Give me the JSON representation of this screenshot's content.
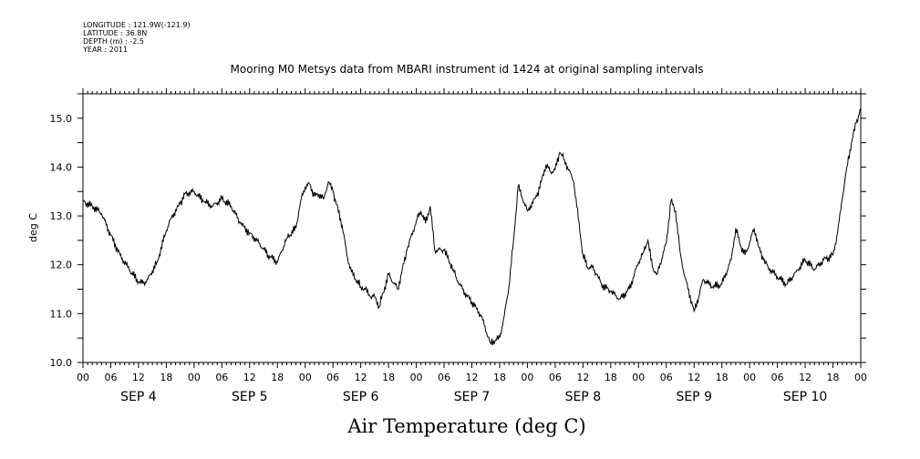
{
  "meta": {
    "longitude": "LONGITUDE : 121.9W(-121.9)",
    "latitude": "LATITUDE : 36.8N",
    "depth": "DEPTH (m) : -2.5",
    "year": "YEAR : 2011"
  },
  "chart_data": {
    "type": "line",
    "title": "Mooring M0 Metsys data from MBARI instrument id 1424 at original sampling intervals",
    "xlabel": "Air Temperature (deg C)",
    "ylabel": "deg C",
    "ylim": [
      10.0,
      15.5
    ],
    "xlim_hours": [
      0,
      168
    ],
    "y_ticks": [
      "10.0",
      "11.0",
      "12.0",
      "13.0",
      "14.0",
      "15.0"
    ],
    "x_hour_ticks": [
      "00",
      "06",
      "12",
      "18",
      "00",
      "06",
      "12",
      "18",
      "00",
      "06",
      "12",
      "18",
      "00",
      "06",
      "12",
      "18",
      "00",
      "06",
      "12",
      "18",
      "00",
      "06",
      "12",
      "18",
      "00",
      "06",
      "12",
      "18",
      "00"
    ],
    "x_day_labels": [
      "SEP  4",
      "SEP  5",
      "SEP  6",
      "SEP  7",
      "SEP  8",
      "SEP  9",
      "SEP 10"
    ],
    "grid": false,
    "legend": "none",
    "series": [
      {
        "color": "#000000",
        "x_hours": [
          0,
          2,
          4,
          6,
          8,
          10,
          12,
          13,
          14,
          16,
          18,
          19,
          21,
          22,
          24,
          26,
          28,
          30,
          32,
          34,
          36,
          38,
          40,
          42,
          44,
          46,
          47,
          48,
          49,
          50,
          51,
          52,
          53,
          54,
          56,
          57,
          58,
          60,
          61,
          62,
          63,
          64,
          66,
          68,
          70,
          72,
          73,
          74,
          75,
          76,
          78,
          80,
          81,
          82,
          83,
          84,
          85,
          86,
          88,
          90,
          91,
          92,
          93,
          94,
          96,
          98,
          99,
          100,
          101,
          102,
          103,
          104,
          106,
          108,
          109,
          110,
          111,
          112,
          114,
          116,
          118,
          120,
          121,
          122,
          123,
          124,
          126,
          127,
          128,
          129,
          130,
          132,
          133,
          134,
          136,
          138,
          140,
          141,
          142,
          143,
          144,
          145,
          146,
          147,
          148,
          150,
          152,
          154,
          156,
          158,
          160,
          161,
          162,
          163,
          164,
          165,
          166,
          167,
          168
        ],
        "values": [
          13.3,
          13.2,
          13.05,
          12.6,
          12.2,
          11.9,
          11.65,
          11.62,
          11.7,
          12.05,
          12.7,
          12.95,
          13.25,
          13.45,
          13.5,
          13.3,
          13.2,
          13.35,
          13.2,
          12.85,
          12.65,
          12.45,
          12.2,
          12.05,
          12.55,
          12.75,
          13.3,
          13.6,
          13.65,
          13.4,
          13.45,
          13.35,
          13.7,
          13.5,
          12.8,
          12.2,
          11.85,
          11.55,
          11.5,
          11.35,
          11.35,
          11.15,
          11.8,
          11.5,
          12.3,
          12.9,
          13.1,
          12.85,
          13.2,
          12.3,
          12.3,
          11.9,
          11.65,
          11.5,
          11.35,
          11.25,
          11.1,
          10.95,
          10.4,
          10.5,
          10.95,
          11.55,
          12.5,
          13.6,
          13.1,
          13.4,
          13.7,
          14.05,
          13.9,
          13.95,
          14.3,
          14.15,
          13.7,
          12.2,
          11.95,
          11.95,
          11.8,
          11.6,
          11.45,
          11.3,
          11.5,
          12.05,
          12.25,
          12.5,
          11.95,
          11.8,
          12.45,
          13.3,
          13.1,
          12.25,
          11.75,
          11.05,
          11.35,
          11.7,
          11.55,
          11.6,
          12.1,
          12.75,
          12.4,
          12.2,
          12.45,
          12.75,
          12.35,
          12.1,
          11.95,
          11.75,
          11.6,
          11.85,
          12.1,
          11.9,
          12.1,
          12.15,
          12.2,
          12.65,
          13.35,
          14.0,
          14.5,
          14.9,
          15.2
        ]
      }
    ]
  }
}
